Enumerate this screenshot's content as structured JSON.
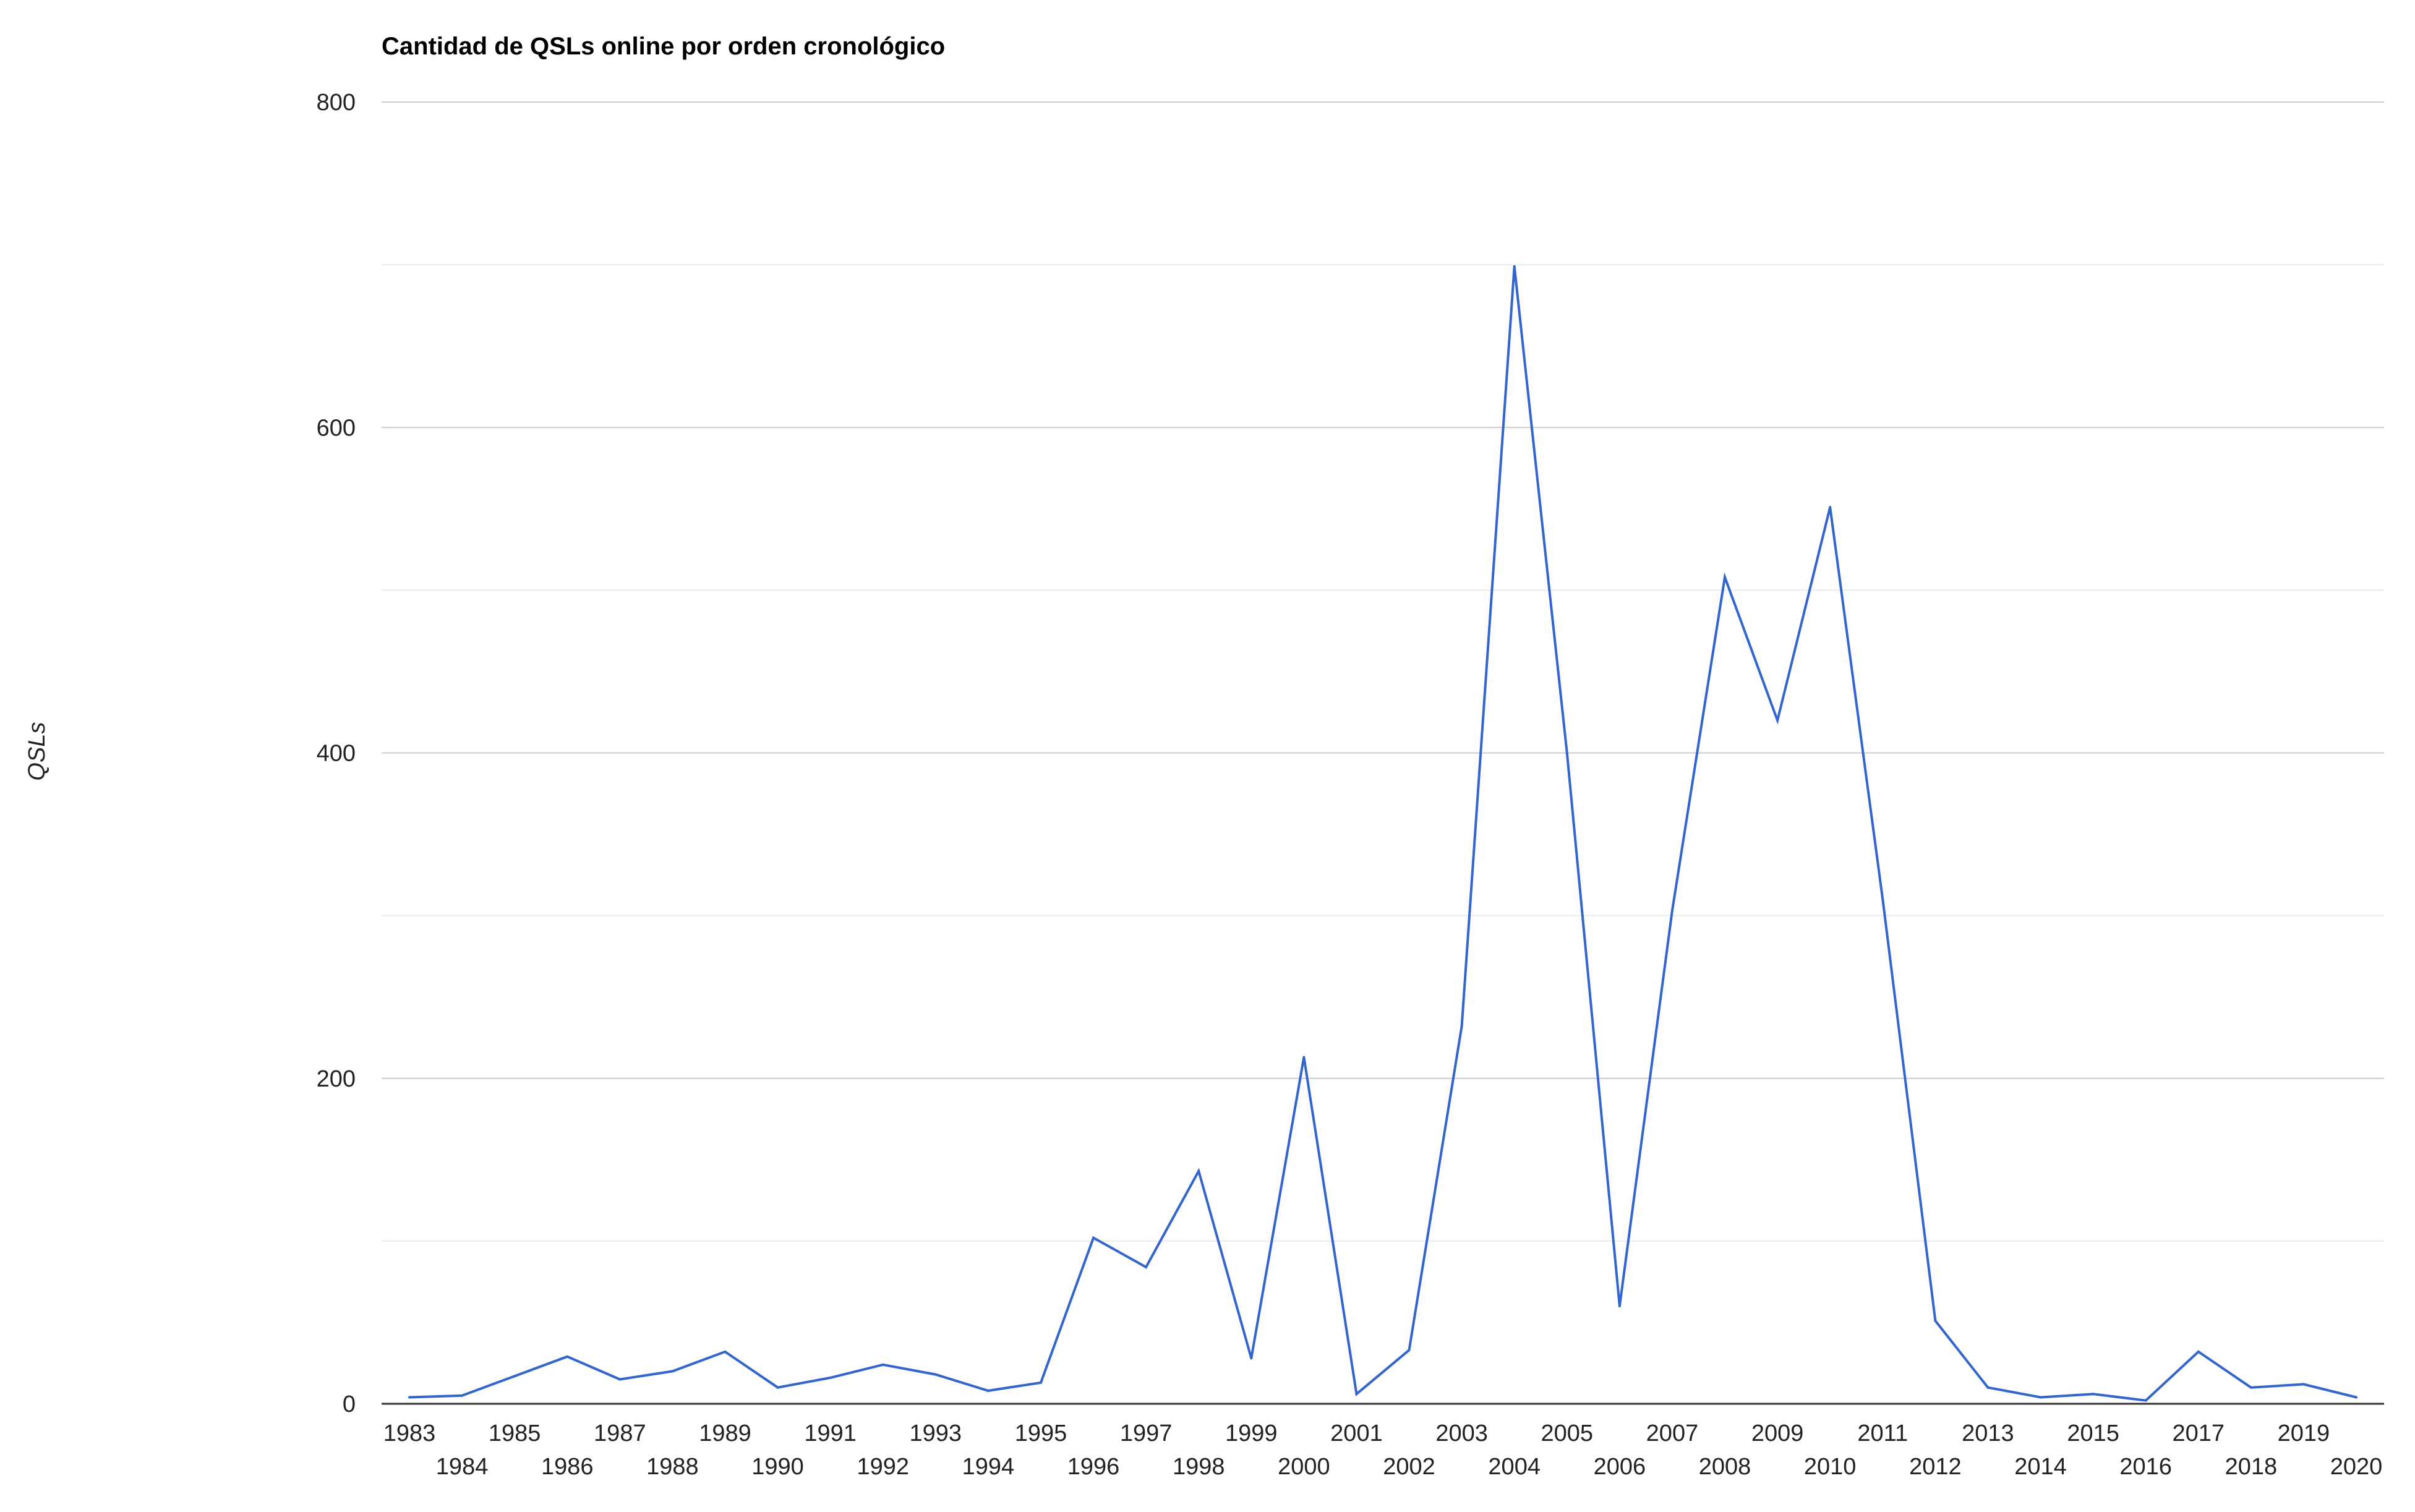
{
  "chart_data": {
    "type": "line",
    "title": "Cantidad de QSLs online por orden cronológico",
    "xlabel": "",
    "ylabel": "QSLs",
    "ylim": [
      0,
      800
    ],
    "y_ticks": [
      0,
      200,
      400,
      600,
      800
    ],
    "grid": true,
    "minor_grid": true,
    "color": "#3366cc",
    "x": [
      1983,
      1984,
      1985,
      1986,
      1987,
      1988,
      1989,
      1990,
      1991,
      1992,
      1993,
      1994,
      1995,
      1996,
      1997,
      1998,
      1999,
      2000,
      2001,
      2002,
      2003,
      2004,
      2005,
      2006,
      2007,
      2008,
      2009,
      2010,
      2011,
      2012,
      2013,
      2014,
      2015,
      2016,
      2017,
      2018,
      2019,
      2020
    ],
    "series": [
      {
        "values": [
          4,
          5,
          17,
          29,
          15,
          20,
          32,
          10,
          16,
          24,
          18,
          8,
          13,
          102,
          84,
          143,
          28,
          213,
          6,
          33,
          232,
          699,
          400,
          60,
          303,
          508,
          420,
          551,
          310,
          51,
          10,
          4,
          6,
          2,
          32,
          10,
          12,
          4
        ]
      }
    ]
  }
}
